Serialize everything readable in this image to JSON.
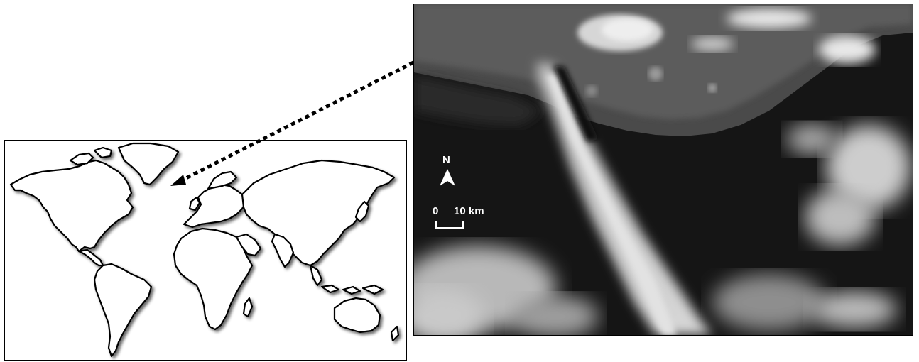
{
  "world_map": {
    "label": "world-outline-map"
  },
  "satellite_image": {
    "north_label": "N",
    "scale_start": "0",
    "scale_end": "10 km"
  },
  "colors": {
    "land_outline": "#000000",
    "map_background": "#ffffff",
    "ocean_dark": "#141414",
    "cloud": "#d9d9d9",
    "text_on_image": "#ffffff"
  }
}
